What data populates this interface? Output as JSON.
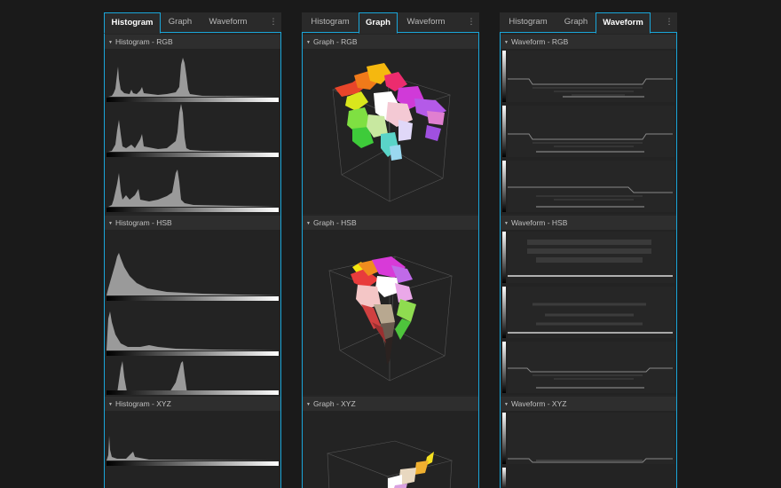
{
  "panels": [
    {
      "tabs": [
        {
          "label": "Histogram",
          "active": true
        },
        {
          "label": "Graph",
          "active": false
        },
        {
          "label": "Waveform",
          "active": false
        }
      ],
      "menu_icon": "vertical-ellipsis-icon",
      "sections": [
        {
          "title": "Histogram - RGB"
        },
        {
          "title": "Histogram - HSB"
        },
        {
          "title": "Histogram - XYZ"
        }
      ]
    },
    {
      "tabs": [
        {
          "label": "Histogram",
          "active": false
        },
        {
          "label": "Graph",
          "active": true
        },
        {
          "label": "Waveform",
          "active": false
        }
      ],
      "menu_icon": "vertical-ellipsis-icon",
      "sections": [
        {
          "title": "Graph - RGB"
        },
        {
          "title": "Graph - HSB"
        },
        {
          "title": "Graph - XYZ"
        }
      ]
    },
    {
      "tabs": [
        {
          "label": "Histogram",
          "active": false
        },
        {
          "label": "Graph",
          "active": false
        },
        {
          "label": "Waveform",
          "active": true
        }
      ],
      "menu_icon": "vertical-ellipsis-icon",
      "sections": [
        {
          "title": "Waveform - RGB"
        },
        {
          "title": "Waveform - HSB"
        },
        {
          "title": "Waveform - XYZ"
        }
      ]
    }
  ],
  "colors": {
    "accent": "#1aa6d9",
    "background": "#1a1a1a",
    "panel": "#252525"
  }
}
